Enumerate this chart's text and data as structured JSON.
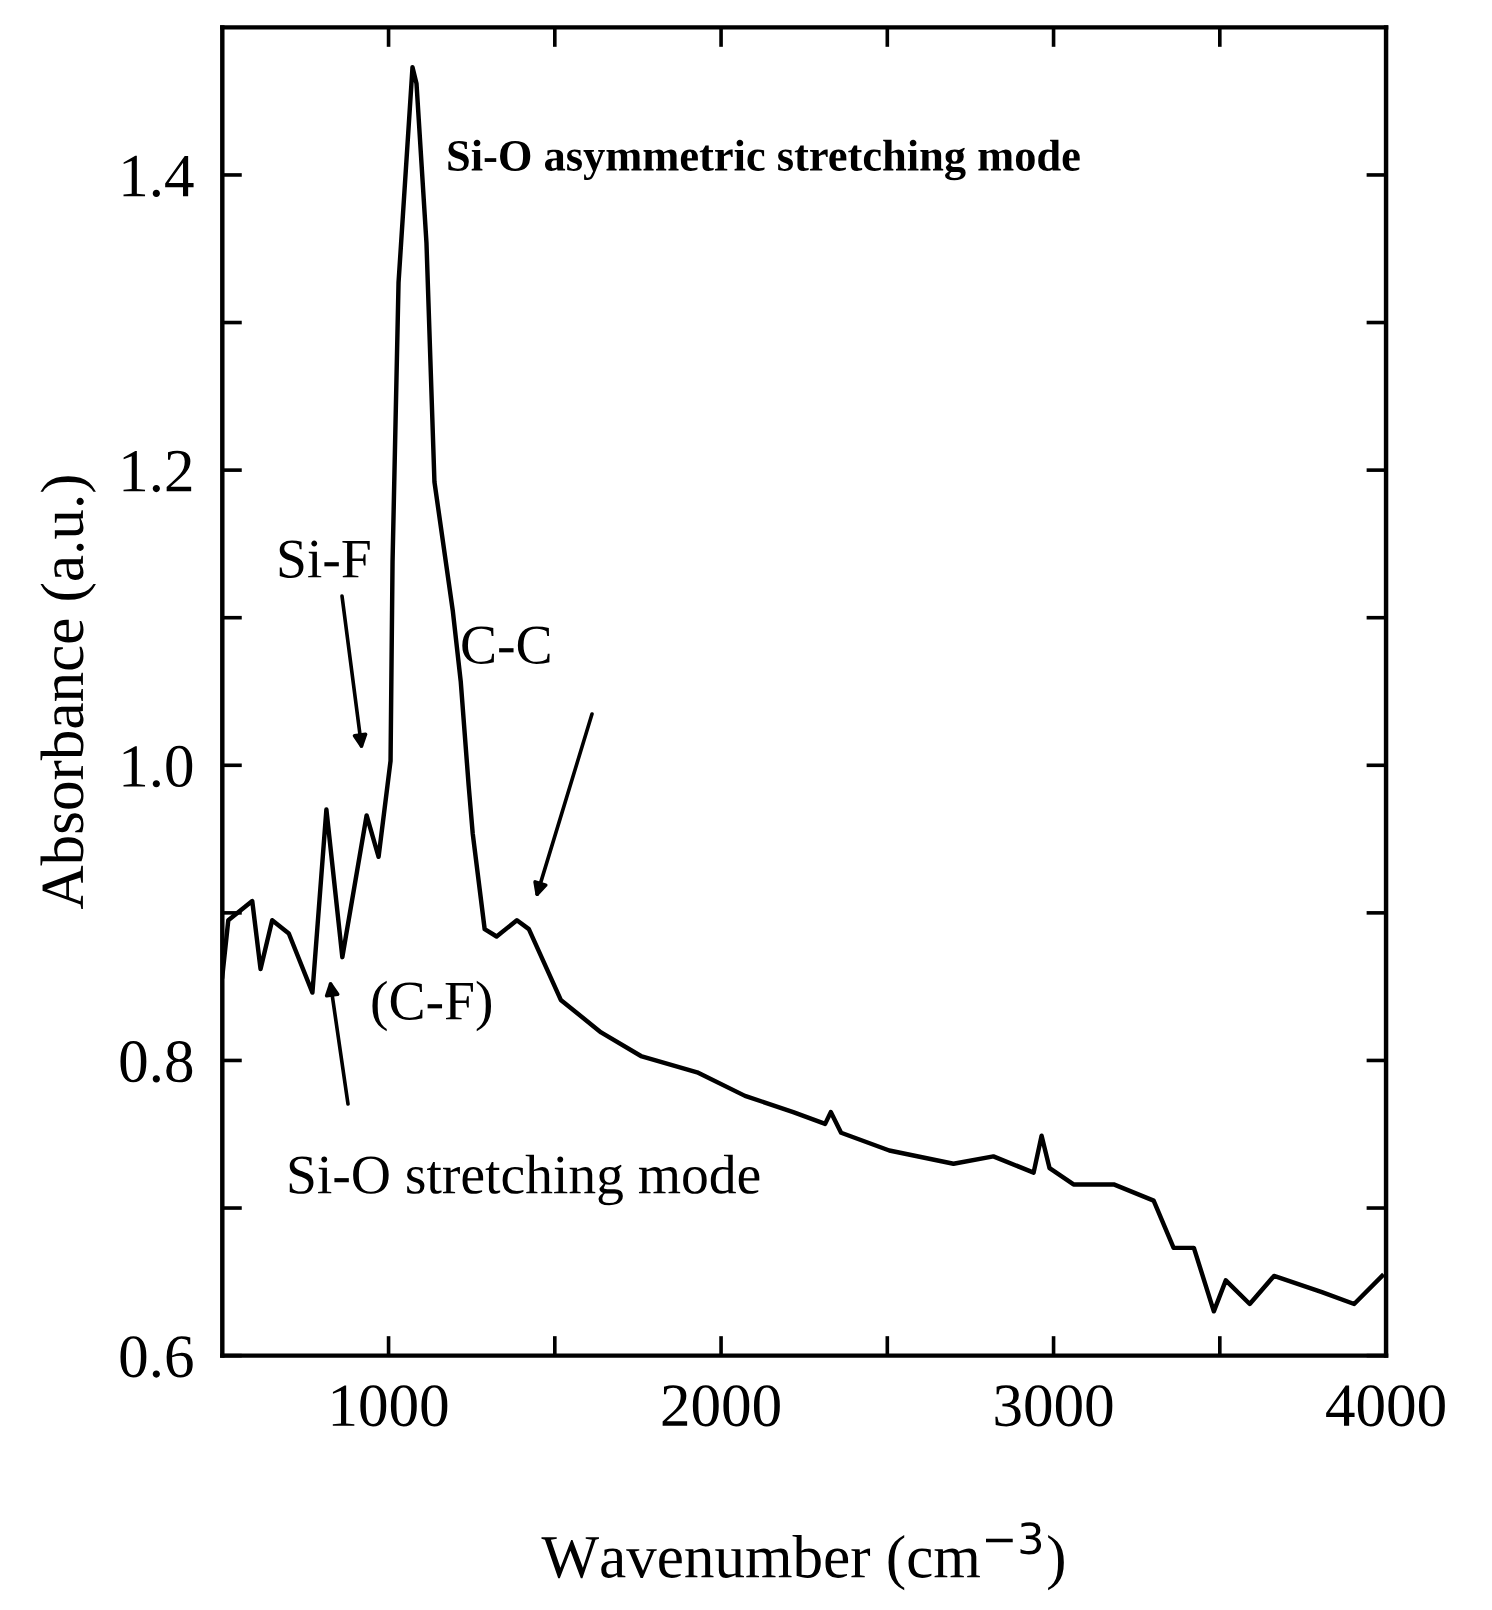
{
  "chart_data": {
    "type": "line",
    "xlabel": "Wavenumber (cm$^{−3}$)",
    "ylabel": "Absorbance (a.u.)",
    "x": [
      500,
      518,
      590,
      615,
      650,
      700,
      771,
      813,
      861,
      880,
      934,
      970,
      1006,
      1012,
      1030,
      1072,
      1084,
      1114,
      1138,
      1193,
      1217,
      1241,
      1253,
      1289,
      1325,
      1386,
      1422,
      1518,
      1639,
      1759,
      1928,
      2072,
      2217,
      2313,
      2330,
      2361,
      2506,
      2699,
      2819,
      2940,
      2964,
      2988,
      3060,
      3181,
      3301,
      3361,
      3422,
      3482,
      3518,
      3590,
      3663,
      3807,
      3904,
      3988
    ],
    "series": [
      {
        "color": "#000000",
        "values": [
          0.857,
          0.895,
          0.908,
          0.862,
          0.895,
          0.886,
          0.846,
          0.97,
          0.87,
          0.895,
          0.966,
          0.938,
          1.003,
          1.138,
          1.327,
          1.473,
          1.462,
          1.354,
          1.192,
          1.105,
          1.057,
          0.986,
          0.954,
          0.889,
          0.884,
          0.895,
          0.889,
          0.841,
          0.819,
          0.803,
          0.792,
          0.776,
          0.765,
          0.757,
          0.765,
          0.751,
          0.739,
          0.73,
          0.735,
          0.724,
          0.749,
          0.727,
          0.716,
          0.716,
          0.705,
          0.673,
          0.673,
          0.63,
          0.651,
          0.635,
          0.654,
          0.643,
          0.635,
          0.654
        ]
      }
    ],
    "xlim": [
      500,
      4000
    ],
    "ylim": [
      0.6,
      1.5
    ],
    "xticks": [
      1000,
      {
        "value": 1500,
        "label": null
      },
      2000,
      {
        "value": 2500,
        "label": null
      },
      3000,
      {
        "value": 3500,
        "label": null
      },
      4000
    ],
    "yticks": [
      {
        "value": 0.6,
        "label": "0.6"
      },
      {
        "value": 0.7,
        "label": null
      },
      {
        "value": 0.8,
        "label": "0.8"
      },
      {
        "value": 0.9,
        "label": null
      },
      {
        "value": 1.0,
        "label": "1.0"
      },
      {
        "value": 1.1,
        "label": null
      },
      {
        "value": 1.2,
        "label": "1.2"
      },
      {
        "value": 1.3,
        "label": null
      },
      {
        "value": 1.4,
        "label": "1.4"
      }
    ],
    "grid": false,
    "legend": false,
    "marker": "none",
    "line_style": "solid",
    "annotations": [
      "Si-O asymmetric stretching mode",
      "Si-F",
      "C-C",
      "(C-F)",
      "Si-O stretching mode"
    ]
  }
}
